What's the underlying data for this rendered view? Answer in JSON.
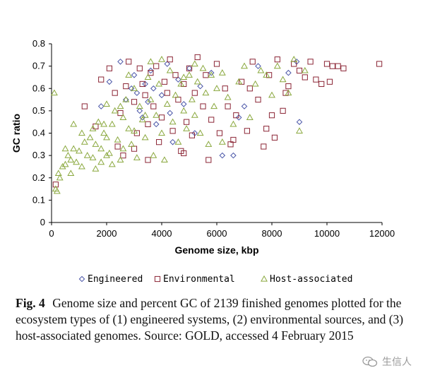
{
  "chart_data": {
    "type": "scatter",
    "title": "",
    "xlabel": "Genome size, kbp",
    "ylabel": "GC ratio",
    "xlim": [
      0,
      12000
    ],
    "ylim": [
      0,
      0.8
    ],
    "xticks": [
      0,
      2000,
      4000,
      6000,
      8000,
      10000,
      12000
    ],
    "yticks": [
      0,
      0.1,
      0.2,
      0.3,
      0.4,
      0.5,
      0.6,
      0.7,
      0.8
    ],
    "xtick_labels": [
      "0",
      "2000",
      "4000",
      "6000",
      "8000",
      "10000",
      "12000"
    ],
    "ytick_labels": [
      "0",
      "0.1",
      "0.2",
      "0.3",
      "0.4",
      "0.5",
      "0.6",
      "0.7",
      "0.8"
    ],
    "grid": false,
    "legend_position": "bottom",
    "series": [
      {
        "name": "Engineered",
        "marker": "diamond",
        "color": "#4a56a8",
        "points": [
          [
            1800,
            0.52
          ],
          [
            2100,
            0.63
          ],
          [
            2500,
            0.72
          ],
          [
            2700,
            0.55
          ],
          [
            3000,
            0.66
          ],
          [
            3100,
            0.58
          ],
          [
            3200,
            0.5
          ],
          [
            3300,
            0.47
          ],
          [
            3400,
            0.62
          ],
          [
            3600,
            0.68
          ],
          [
            3800,
            0.44
          ],
          [
            4000,
            0.57
          ],
          [
            4200,
            0.71
          ],
          [
            4400,
            0.36
          ],
          [
            4600,
            0.64
          ],
          [
            4800,
            0.53
          ],
          [
            5000,
            0.69
          ],
          [
            5200,
            0.4
          ],
          [
            5400,
            0.61
          ],
          [
            5800,
            0.67
          ],
          [
            6200,
            0.3
          ],
          [
            6600,
            0.3
          ],
          [
            6800,
            0.47
          ],
          [
            7000,
            0.52
          ],
          [
            7500,
            0.7
          ],
          [
            8600,
            0.67
          ],
          [
            8900,
            0.72
          ],
          [
            9000,
            0.45
          ],
          [
            3500,
            0.54
          ],
          [
            2900,
            0.6
          ],
          [
            3700,
            0.6
          ],
          [
            4300,
            0.49
          ]
        ]
      },
      {
        "name": "Environmental",
        "marker": "square",
        "color": "#8b2535",
        "points": [
          [
            150,
            0.17
          ],
          [
            1200,
            0.52
          ],
          [
            1600,
            0.43
          ],
          [
            1800,
            0.64
          ],
          [
            2100,
            0.69
          ],
          [
            2300,
            0.58
          ],
          [
            2500,
            0.49
          ],
          [
            2700,
            0.61
          ],
          [
            2800,
            0.72
          ],
          [
            3000,
            0.54
          ],
          [
            3100,
            0.4
          ],
          [
            3200,
            0.69
          ],
          [
            3300,
            0.62
          ],
          [
            3400,
            0.57
          ],
          [
            3500,
            0.44
          ],
          [
            3600,
            0.67
          ],
          [
            3700,
            0.52
          ],
          [
            3800,
            0.7
          ],
          [
            3900,
            0.36
          ],
          [
            4000,
            0.47
          ],
          [
            4100,
            0.63
          ],
          [
            4200,
            0.58
          ],
          [
            4300,
            0.73
          ],
          [
            4400,
            0.41
          ],
          [
            4500,
            0.66
          ],
          [
            4600,
            0.55
          ],
          [
            4700,
            0.32
          ],
          [
            4800,
            0.62
          ],
          [
            4900,
            0.45
          ],
          [
            5000,
            0.69
          ],
          [
            5100,
            0.39
          ],
          [
            5200,
            0.58
          ],
          [
            5300,
            0.74
          ],
          [
            5500,
            0.52
          ],
          [
            5600,
            0.66
          ],
          [
            5800,
            0.46
          ],
          [
            6000,
            0.71
          ],
          [
            6100,
            0.4
          ],
          [
            6300,
            0.6
          ],
          [
            6500,
            0.35
          ],
          [
            6700,
            0.48
          ],
          [
            6900,
            0.63
          ],
          [
            7100,
            0.41
          ],
          [
            7300,
            0.72
          ],
          [
            7500,
            0.55
          ],
          [
            7700,
            0.34
          ],
          [
            7800,
            0.42
          ],
          [
            7900,
            0.66
          ],
          [
            8000,
            0.48
          ],
          [
            8100,
            0.38
          ],
          [
            8200,
            0.73
          ],
          [
            8400,
            0.5
          ],
          [
            8600,
            0.61
          ],
          [
            8800,
            0.71
          ],
          [
            9000,
            0.68
          ],
          [
            9200,
            0.65
          ],
          [
            9600,
            0.64
          ],
          [
            9800,
            0.62
          ],
          [
            10000,
            0.71
          ],
          [
            10200,
            0.7
          ],
          [
            10400,
            0.7
          ],
          [
            10600,
            0.69
          ],
          [
            11900,
            0.71
          ],
          [
            2400,
            0.34
          ],
          [
            2600,
            0.3
          ],
          [
            3500,
            0.28
          ],
          [
            4800,
            0.31
          ],
          [
            6400,
            0.52
          ],
          [
            5700,
            0.28
          ],
          [
            8500,
            0.58
          ],
          [
            9400,
            0.72
          ],
          [
            10100,
            0.63
          ],
          [
            7200,
            0.6
          ],
          [
            6600,
            0.37
          ],
          [
            3000,
            0.33
          ]
        ]
      },
      {
        "name": "Host-associated",
        "marker": "triangle",
        "color": "#8aa83e",
        "points": [
          [
            100,
            0.58
          ],
          [
            150,
            0.15
          ],
          [
            200,
            0.14
          ],
          [
            250,
            0.22
          ],
          [
            300,
            0.2
          ],
          [
            400,
            0.25
          ],
          [
            500,
            0.26
          ],
          [
            600,
            0.3
          ],
          [
            700,
            0.28
          ],
          [
            800,
            0.33
          ],
          [
            900,
            0.27
          ],
          [
            1000,
            0.32
          ],
          [
            1100,
            0.25
          ],
          [
            1200,
            0.36
          ],
          [
            1300,
            0.3
          ],
          [
            1400,
            0.38
          ],
          [
            1500,
            0.42
          ],
          [
            1600,
            0.35
          ],
          [
            1700,
            0.45
          ],
          [
            1800,
            0.33
          ],
          [
            1900,
            0.4
          ],
          [
            2000,
            0.38
          ],
          [
            2100,
            0.31
          ],
          [
            2200,
            0.44
          ],
          [
            2300,
            0.5
          ],
          [
            2400,
            0.37
          ],
          [
            2500,
            0.28
          ],
          [
            2600,
            0.47
          ],
          [
            2700,
            0.55
          ],
          [
            2800,
            0.42
          ],
          [
            2900,
            0.35
          ],
          [
            3000,
            0.6
          ],
          [
            3100,
            0.29
          ],
          [
            3200,
            0.52
          ],
          [
            3300,
            0.46
          ],
          [
            3400,
            0.38
          ],
          [
            3500,
            0.65
          ],
          [
            3600,
            0.55
          ],
          [
            3700,
            0.3
          ],
          [
            3800,
            0.48
          ],
          [
            3900,
            0.62
          ],
          [
            4000,
            0.4
          ],
          [
            4100,
            0.28
          ],
          [
            4200,
            0.53
          ],
          [
            4300,
            0.68
          ],
          [
            4400,
            0.45
          ],
          [
            4500,
            0.57
          ],
          [
            4600,
            0.36
          ],
          [
            4700,
            0.62
          ],
          [
            4800,
            0.5
          ],
          [
            4900,
            0.42
          ],
          [
            5000,
            0.66
          ],
          [
            5100,
            0.55
          ],
          [
            5200,
            0.48
          ],
          [
            5300,
            0.63
          ],
          [
            5400,
            0.4
          ],
          [
            5500,
            0.69
          ],
          [
            5600,
            0.58
          ],
          [
            5700,
            0.35
          ],
          [
            5800,
            0.66
          ],
          [
            5900,
            0.52
          ],
          [
            6000,
            0.6
          ],
          [
            6200,
            0.67
          ],
          [
            6400,
            0.56
          ],
          [
            6600,
            0.44
          ],
          [
            6800,
            0.63
          ],
          [
            7000,
            0.7
          ],
          [
            7200,
            0.47
          ],
          [
            7400,
            0.62
          ],
          [
            7600,
            0.68
          ],
          [
            7800,
            0.66
          ],
          [
            8000,
            0.57
          ],
          [
            8200,
            0.7
          ],
          [
            8400,
            0.64
          ],
          [
            8600,
            0.58
          ],
          [
            8800,
            0.73
          ],
          [
            9000,
            0.41
          ],
          [
            9200,
            0.68
          ],
          [
            1600,
            0.24
          ],
          [
            1800,
            0.27
          ],
          [
            2000,
            0.3
          ],
          [
            2200,
            0.26
          ],
          [
            1100,
            0.4
          ],
          [
            800,
            0.44
          ],
          [
            500,
            0.33
          ],
          [
            700,
            0.22
          ],
          [
            2500,
            0.52
          ],
          [
            3600,
            0.72
          ],
          [
            4000,
            0.73
          ],
          [
            4800,
            0.65
          ],
          [
            6200,
            0.36
          ],
          [
            3000,
            0.41
          ],
          [
            2000,
            0.53
          ],
          [
            1500,
            0.29
          ],
          [
            2800,
            0.66
          ],
          [
            5200,
            0.71
          ],
          [
            3400,
            0.48
          ],
          [
            1900,
            0.44
          ],
          [
            2600,
            0.33
          ]
        ]
      }
    ]
  },
  "caption": {
    "label": "Fig. 4",
    "text": "Genome size and percent GC of 2139 finished genomes plotted for the ecosystem types of (1) engineered systems, (2) environmental sources, and (3) host-associated genomes. Source: GOLD, accessed 4 February 2015"
  },
  "watermark": {
    "text": "生信人",
    "icon": "wechat-icon"
  }
}
